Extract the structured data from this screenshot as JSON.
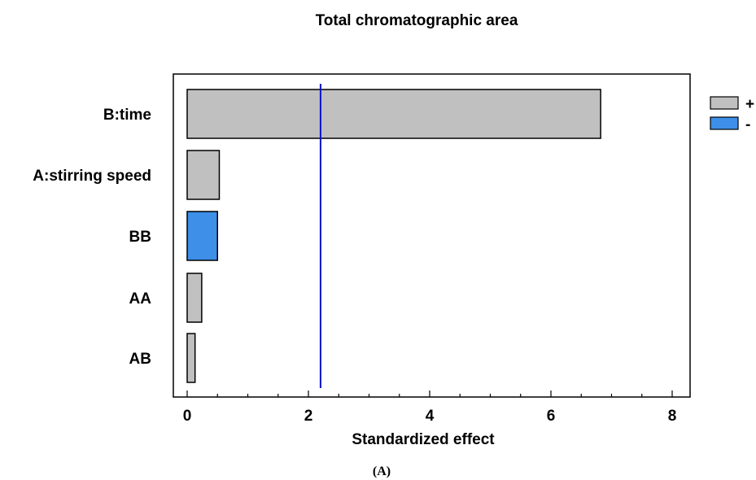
{
  "chart_data": {
    "type": "bar",
    "orientation": "horizontal",
    "title": "Total chromatographic area",
    "xlabel": "Standardized effect",
    "ylabel": "",
    "xlim": [
      0,
      8
    ],
    "xticks": [
      0,
      2,
      4,
      6,
      8
    ],
    "categories": [
      "B:time",
      "A:stirring speed",
      "BB",
      "AA",
      "AB"
    ],
    "values": [
      6.82,
      0.53,
      0.5,
      0.24,
      0.13
    ],
    "signs": [
      "+",
      "+",
      "-",
      "+",
      "+"
    ],
    "reference_line": 2.2,
    "legend": {
      "placement": "right",
      "entries": [
        {
          "label": "+",
          "color": "#c0c0c0"
        },
        {
          "label": "-",
          "color": "#3d8fe8"
        }
      ]
    },
    "colors": {
      "positive": "#c0c0c0",
      "negative": "#3d8fe8",
      "reference_line": "#0a12c8"
    },
    "grid": false
  },
  "caption": "(A)"
}
